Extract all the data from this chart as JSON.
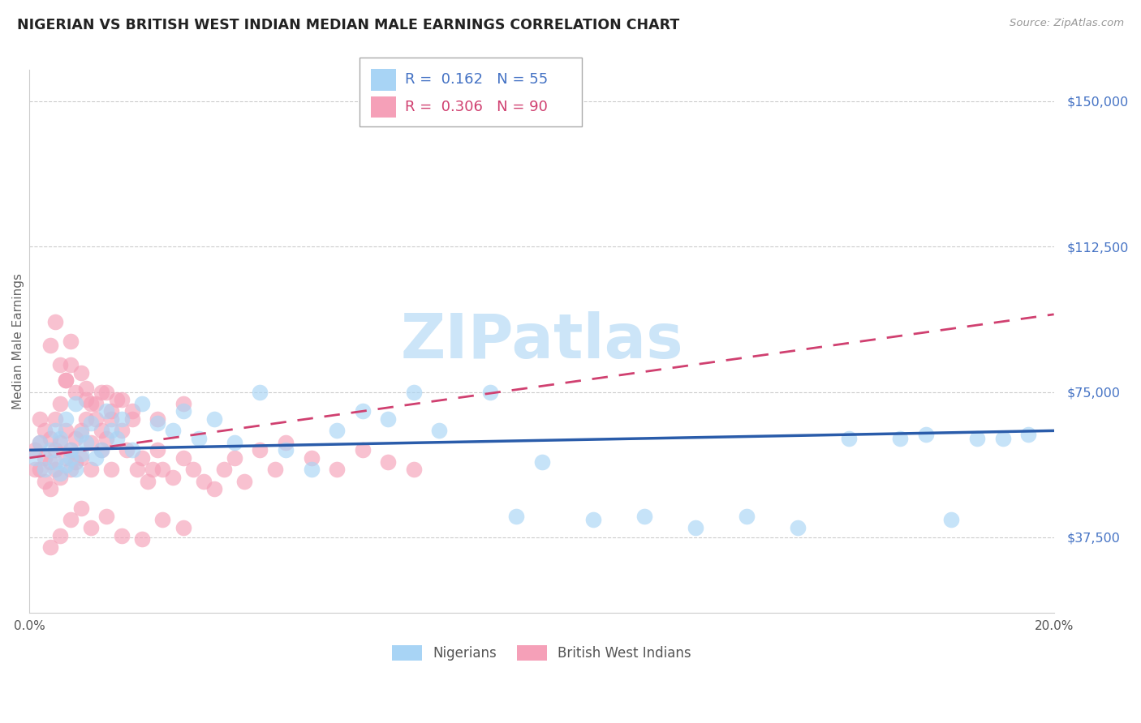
{
  "title": "NIGERIAN VS BRITISH WEST INDIAN MEDIAN MALE EARNINGS CORRELATION CHART",
  "source": "Source: ZipAtlas.com",
  "ylabel": "Median Male Earnings",
  "xmin": 0.0,
  "xmax": 0.2,
  "ymin": 18000,
  "ymax": 158000,
  "color_nigerian": "#a8d4f5",
  "color_bwi": "#f5a0b8",
  "color_trendline_nigerian": "#2a5caa",
  "color_trendline_bwi": "#d04070",
  "watermark": "ZIPatlas",
  "watermark_color": "#cce5f8",
  "nigerian_x": [
    0.001,
    0.002,
    0.003,
    0.004,
    0.005,
    0.005,
    0.006,
    0.006,
    0.007,
    0.007,
    0.008,
    0.008,
    0.009,
    0.009,
    0.01,
    0.01,
    0.011,
    0.012,
    0.013,
    0.014,
    0.015,
    0.016,
    0.017,
    0.018,
    0.02,
    0.022,
    0.025,
    0.028,
    0.03,
    0.033,
    0.036,
    0.04,
    0.045,
    0.05,
    0.055,
    0.06,
    0.065,
    0.07,
    0.075,
    0.08,
    0.09,
    0.095,
    0.1,
    0.11,
    0.12,
    0.13,
    0.14,
    0.15,
    0.16,
    0.17,
    0.175,
    0.18,
    0.185,
    0.19,
    0.195
  ],
  "nigerian_y": [
    58000,
    62000,
    55000,
    60000,
    65000,
    57000,
    63000,
    54000,
    68000,
    56000,
    60000,
    58000,
    72000,
    55000,
    64000,
    59000,
    62000,
    67000,
    58000,
    60000,
    70000,
    65000,
    63000,
    68000,
    60000,
    72000,
    67000,
    65000,
    70000,
    63000,
    68000,
    62000,
    75000,
    60000,
    55000,
    65000,
    70000,
    68000,
    75000,
    65000,
    75000,
    43000,
    57000,
    42000,
    43000,
    40000,
    43000,
    40000,
    63000,
    63000,
    64000,
    42000,
    63000,
    63000,
    64000
  ],
  "bwi_x": [
    0.001,
    0.001,
    0.002,
    0.002,
    0.002,
    0.003,
    0.003,
    0.003,
    0.004,
    0.004,
    0.004,
    0.005,
    0.005,
    0.005,
    0.006,
    0.006,
    0.006,
    0.007,
    0.007,
    0.007,
    0.008,
    0.008,
    0.008,
    0.009,
    0.009,
    0.01,
    0.01,
    0.011,
    0.011,
    0.012,
    0.012,
    0.013,
    0.013,
    0.014,
    0.014,
    0.015,
    0.015,
    0.016,
    0.016,
    0.017,
    0.018,
    0.019,
    0.02,
    0.021,
    0.022,
    0.023,
    0.024,
    0.025,
    0.026,
    0.028,
    0.03,
    0.032,
    0.034,
    0.036,
    0.038,
    0.04,
    0.042,
    0.045,
    0.048,
    0.05,
    0.055,
    0.06,
    0.065,
    0.07,
    0.075,
    0.004,
    0.005,
    0.006,
    0.007,
    0.008,
    0.009,
    0.01,
    0.011,
    0.012,
    0.014,
    0.016,
    0.018,
    0.02,
    0.025,
    0.03,
    0.004,
    0.006,
    0.008,
    0.01,
    0.012,
    0.015,
    0.018,
    0.022,
    0.026,
    0.03
  ],
  "bwi_y": [
    60000,
    55000,
    62000,
    55000,
    68000,
    58000,
    52000,
    65000,
    57000,
    63000,
    50000,
    60000,
    55000,
    68000,
    53000,
    62000,
    72000,
    58000,
    65000,
    78000,
    60000,
    55000,
    82000,
    63000,
    57000,
    65000,
    58000,
    68000,
    73000,
    62000,
    55000,
    68000,
    72000,
    65000,
    60000,
    75000,
    63000,
    68000,
    55000,
    73000,
    65000,
    60000,
    68000,
    55000,
    58000,
    52000,
    55000,
    60000,
    55000,
    53000,
    58000,
    55000,
    52000,
    50000,
    55000,
    58000,
    52000,
    60000,
    55000,
    62000,
    58000,
    55000,
    60000,
    57000,
    55000,
    87000,
    93000,
    82000,
    78000,
    88000,
    75000,
    80000,
    76000,
    72000,
    75000,
    70000,
    73000,
    70000,
    68000,
    72000,
    35000,
    38000,
    42000,
    45000,
    40000,
    43000,
    38000,
    37000,
    42000,
    40000
  ]
}
